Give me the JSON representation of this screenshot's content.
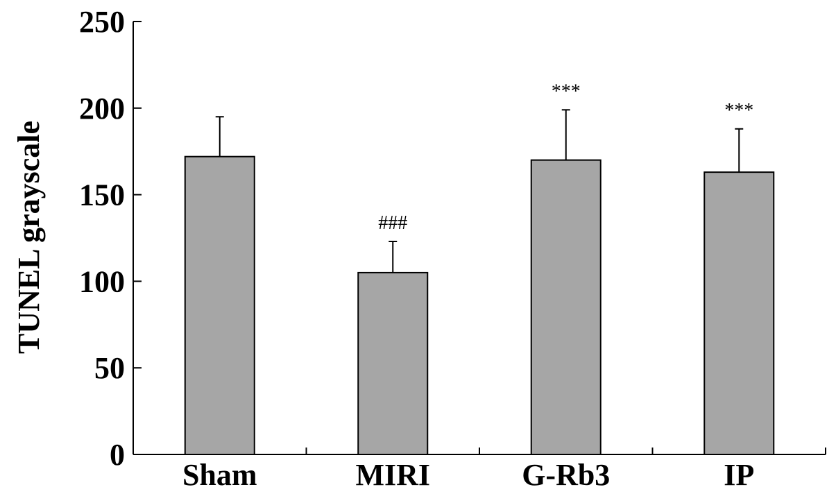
{
  "chart_data": {
    "type": "bar",
    "title": "",
    "xlabel": "",
    "ylabel": "TUNEL grayscale",
    "ylim": [
      0,
      250
    ],
    "yticks": [
      "0",
      "50",
      "100",
      "150",
      "200",
      "250"
    ],
    "categories": [
      "Sham",
      "MIRI",
      "G-Rb3",
      "IP"
    ],
    "values": [
      172,
      105,
      170,
      163
    ],
    "error": [
      23,
      18,
      29,
      25
    ],
    "annotations": [
      "",
      "###",
      "***",
      "***"
    ],
    "grid": false,
    "legend": "none",
    "bar_color": "#a6a6a6",
    "edge_color": "#000000"
  }
}
